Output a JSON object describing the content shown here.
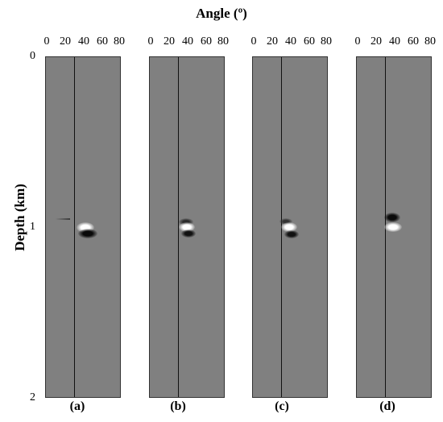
{
  "figure": {
    "title": "Angle (º)",
    "ylabel": "Depth (km)",
    "yticks": [
      "0",
      "1",
      "2"
    ],
    "xticks": [
      "0",
      "20",
      "40",
      "60",
      "80"
    ],
    "panels": [
      {
        "label": "(a)",
        "marker_angle": 31
      },
      {
        "label": "(b)",
        "marker_angle": 31
      },
      {
        "label": "(c)",
        "marker_angle": 31
      },
      {
        "label": "(d)",
        "marker_angle": 31
      }
    ]
  }
}
